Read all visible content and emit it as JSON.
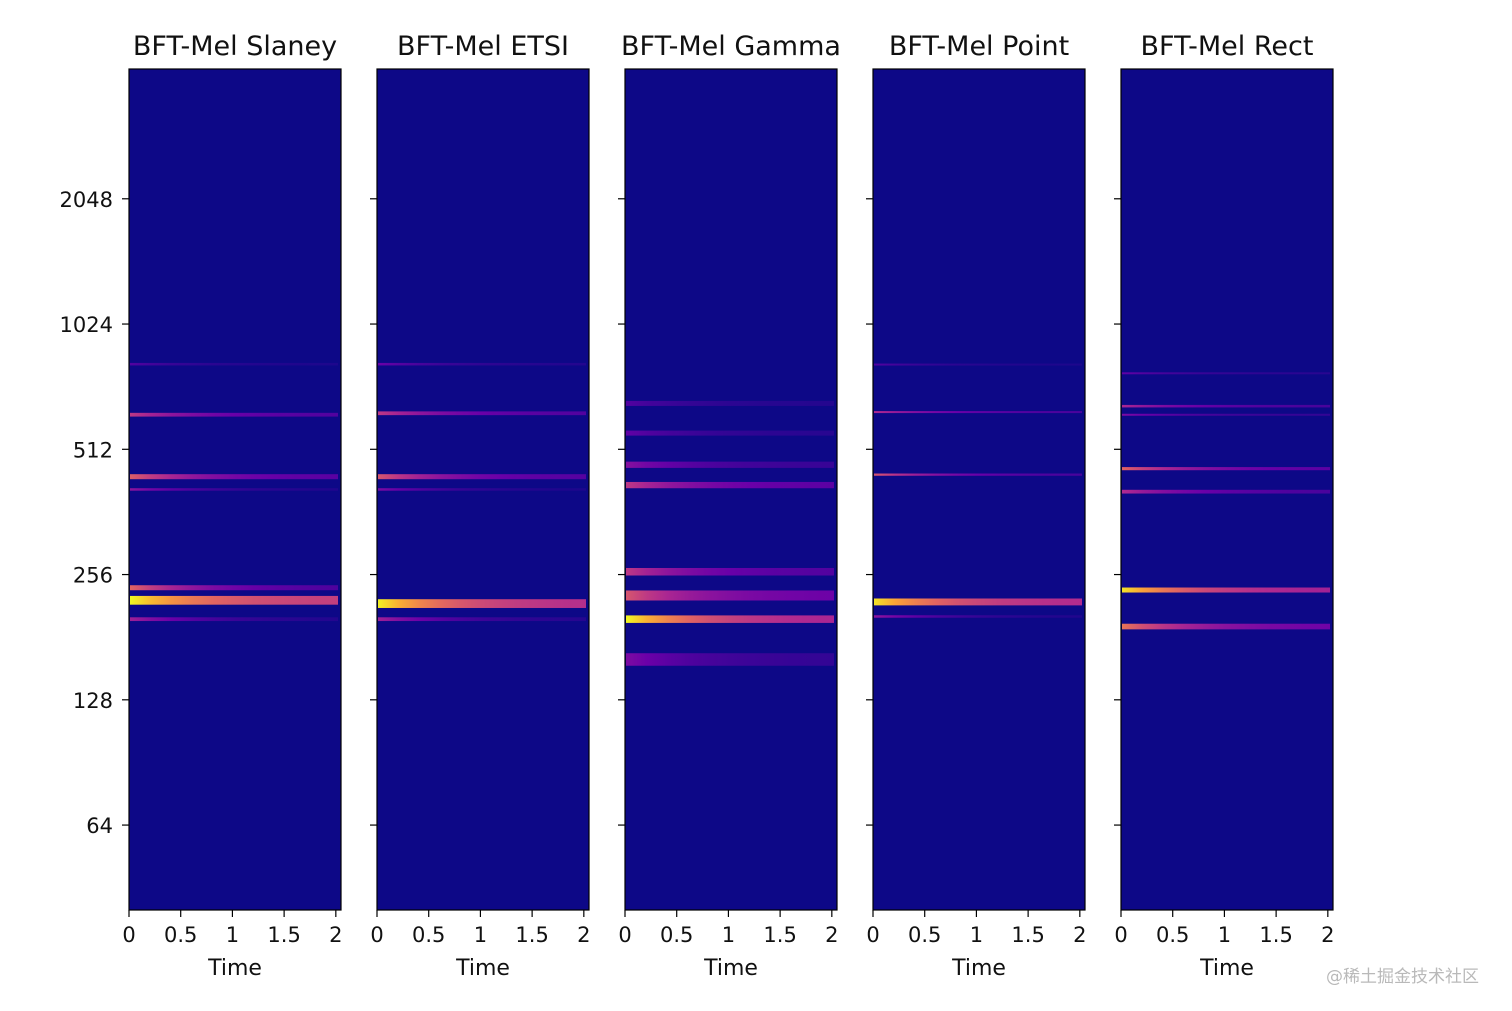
{
  "chart_data": {
    "type": "heatmap",
    "colormap": [
      "#0d0887",
      "#6a00a8",
      "#b12a90",
      "#e16462",
      "#fca636",
      "#f0f921"
    ],
    "y_axis": {
      "scale": "log2",
      "range": [
        40,
        4200
      ],
      "tick_values": [
        64,
        128,
        256,
        512,
        1024,
        2048
      ],
      "tick_labels": [
        "64",
        "128",
        "256",
        "512",
        "1024",
        "2048"
      ]
    },
    "x_axis": {
      "label": "Time",
      "range": [
        0,
        2.05
      ],
      "tick_values": [
        0,
        0.5,
        1,
        1.5,
        2
      ],
      "tick_labels": [
        "0",
        "0.5",
        "1",
        "1.5",
        "2"
      ]
    },
    "panels": [
      {
        "title": "BFT-Mel Slaney",
        "bands": [
          {
            "freq": 222,
            "width": 0.07,
            "peak": 1.0,
            "decay": 0.45
          },
          {
            "freq": 238,
            "width": 0.04,
            "peak": 0.6,
            "decay": 0.2
          },
          {
            "freq": 200,
            "width": 0.03,
            "peak": 0.35,
            "decay": 0.1
          },
          {
            "freq": 440,
            "width": 0.04,
            "peak": 0.58,
            "decay": 0.25
          },
          {
            "freq": 410,
            "width": 0.02,
            "peak": 0.3,
            "decay": 0.1
          },
          {
            "freq": 620,
            "width": 0.03,
            "peak": 0.45,
            "decay": 0.3
          },
          {
            "freq": 820,
            "width": 0.02,
            "peak": 0.15,
            "decay": 0.2
          }
        ]
      },
      {
        "title": "BFT-Mel ETSI",
        "bands": [
          {
            "freq": 218,
            "width": 0.07,
            "peak": 0.98,
            "decay": 0.4
          },
          {
            "freq": 200,
            "width": 0.03,
            "peak": 0.35,
            "decay": 0.12
          },
          {
            "freq": 440,
            "width": 0.04,
            "peak": 0.55,
            "decay": 0.25
          },
          {
            "freq": 410,
            "width": 0.02,
            "peak": 0.25,
            "decay": 0.1
          },
          {
            "freq": 625,
            "width": 0.03,
            "peak": 0.45,
            "decay": 0.3
          },
          {
            "freq": 820,
            "width": 0.02,
            "peak": 0.2,
            "decay": 0.2
          }
        ]
      },
      {
        "title": "BFT-Mel Gamma",
        "bands": [
          {
            "freq": 200,
            "width": 0.06,
            "peak": 1.0,
            "decay": 0.35
          },
          {
            "freq": 228,
            "width": 0.08,
            "peak": 0.55,
            "decay": 0.35
          },
          {
            "freq": 260,
            "width": 0.06,
            "peak": 0.45,
            "decay": 0.3
          },
          {
            "freq": 160,
            "width": 0.1,
            "peak": 0.25,
            "decay": 0.3
          },
          {
            "freq": 420,
            "width": 0.05,
            "peak": 0.45,
            "decay": 0.35
          },
          {
            "freq": 470,
            "width": 0.05,
            "peak": 0.28,
            "decay": 0.3
          },
          {
            "freq": 560,
            "width": 0.04,
            "peak": 0.18,
            "decay": 0.3
          },
          {
            "freq": 660,
            "width": 0.04,
            "peak": 0.15,
            "decay": 0.3
          }
        ]
      },
      {
        "title": "BFT-Mel Point",
        "bands": [
          {
            "freq": 220,
            "width": 0.055,
            "peak": 0.95,
            "decay": 0.4
          },
          {
            "freq": 203,
            "width": 0.02,
            "peak": 0.3,
            "decay": 0.1
          },
          {
            "freq": 445,
            "width": 0.018,
            "peak": 0.55,
            "decay": 0.2
          },
          {
            "freq": 630,
            "width": 0.012,
            "peak": 0.4,
            "decay": 0.3
          },
          {
            "freq": 820,
            "width": 0.01,
            "peak": 0.15,
            "decay": 0.2
          }
        ]
      },
      {
        "title": "BFT-Mel Rect",
        "bands": [
          {
            "freq": 235,
            "width": 0.04,
            "peak": 0.95,
            "decay": 0.35
          },
          {
            "freq": 192,
            "width": 0.045,
            "peak": 0.65,
            "decay": 0.3
          },
          {
            "freq": 460,
            "width": 0.025,
            "peak": 0.6,
            "decay": 0.25
          },
          {
            "freq": 405,
            "width": 0.03,
            "peak": 0.4,
            "decay": 0.3
          },
          {
            "freq": 650,
            "width": 0.02,
            "peak": 0.38,
            "decay": 0.3
          },
          {
            "freq": 620,
            "width": 0.015,
            "peak": 0.25,
            "decay": 0.3
          },
          {
            "freq": 780,
            "width": 0.015,
            "peak": 0.18,
            "decay": 0.3
          }
        ]
      }
    ]
  },
  "watermark": "@稀土掘金技术社区"
}
